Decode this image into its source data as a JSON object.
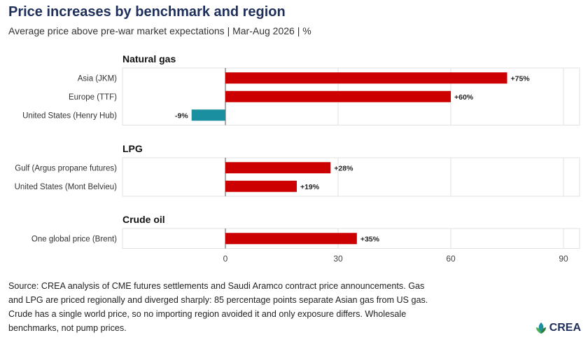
{
  "header": {
    "title": "Price increases by benchmark and region",
    "subtitle": "Average price above pre-war market expectations | Mar-Aug 2026 | %"
  },
  "colors": {
    "positive": "#cc0000",
    "negative": "#1a8fa0",
    "title": "#1f2f5c"
  },
  "chart_data": {
    "type": "bar",
    "orientation": "horizontal",
    "xlim": [
      -30,
      95
    ],
    "xticks": [
      0,
      30,
      60,
      90
    ],
    "grid": true,
    "panels": [
      {
        "name": "Natural gas",
        "categories": [
          "Asia (JKM)",
          "Europe (TTF)",
          "United States (Henry Hub)"
        ],
        "values": [
          75,
          60,
          -9
        ],
        "labels": [
          "+75%",
          "+60%",
          "-9%"
        ]
      },
      {
        "name": "LPG",
        "categories": [
          "Gulf (Argus propane futures)",
          "United States (Mont Belvieu)"
        ],
        "values": [
          28,
          19
        ],
        "labels": [
          "+28%",
          "+19%"
        ]
      },
      {
        "name": "Crude oil",
        "categories": [
          "One global price (Brent)"
        ],
        "values": [
          35
        ],
        "labels": [
          "+35%"
        ]
      }
    ]
  },
  "footnote": "Source: CREA analysis of CME futures settlements and Saudi Aramco contract price announcements. Gas and LPG are priced regionally and diverged sharply: 85 percentage points separate Asian gas from US gas. Crude has a single world price, so no importing region avoided it and only exposure differs. Wholesale benchmarks, not pump prices.",
  "logo": {
    "text": "CREA",
    "icon": "crea-leaf-icon"
  }
}
